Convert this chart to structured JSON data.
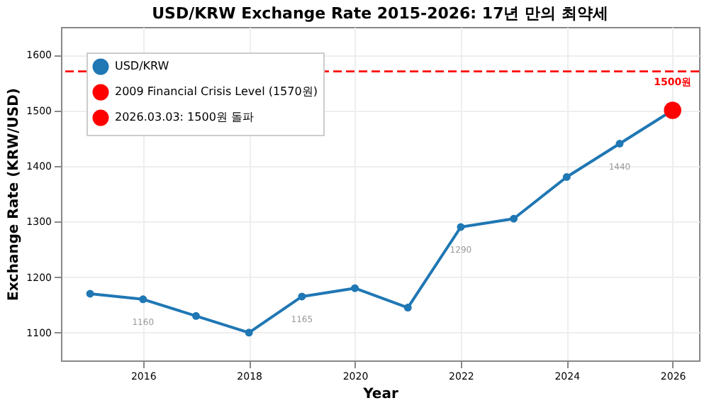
{
  "chart_data": {
    "type": "line",
    "title": "USD/KRW Exchange Rate 2015-2026: 17년 만의 최약세",
    "xlabel": "Year",
    "ylabel": "Exchange Rate (KRW/USD)",
    "x": [
      2015,
      2016,
      2017,
      2018,
      2019,
      2020,
      2021,
      2022,
      2023,
      2024,
      2025,
      2026
    ],
    "series": [
      {
        "name": "USD/KRW",
        "color": "#1f77b4",
        "values": [
          1170,
          1160,
          1130,
          1100,
          1165,
          1180,
          1145,
          1290,
          1305,
          1380,
          1440,
          1500
        ],
        "value_labels": [
          null,
          "1160",
          null,
          null,
          "1165",
          null,
          null,
          "1290",
          null,
          null,
          "1440",
          null
        ],
        "marker": "circle"
      },
      {
        "name": "2026.03.03: 1500원 돌파",
        "type": "scatter",
        "color": "#ff0000",
        "x": [
          2026
        ],
        "values": [
          1500
        ],
        "value_labels": [
          "1500원"
        ],
        "marker": "circle"
      }
    ],
    "ref_lines": [
      {
        "axis": "y",
        "value": 1570,
        "label": "2009 Financial Crisis Level (1570원)",
        "color": "#ff0000",
        "line_style": "dashed"
      }
    ],
    "xlim": [
      2014.45,
      2026.5
    ],
    "xticks": [
      2016,
      2018,
      2020,
      2022,
      2024,
      2026
    ],
    "ylim": [
      1050,
      1650
    ],
    "yticks": [
      1100,
      1200,
      1300,
      1400,
      1500,
      1600
    ],
    "grid": true,
    "legend": "top left"
  }
}
